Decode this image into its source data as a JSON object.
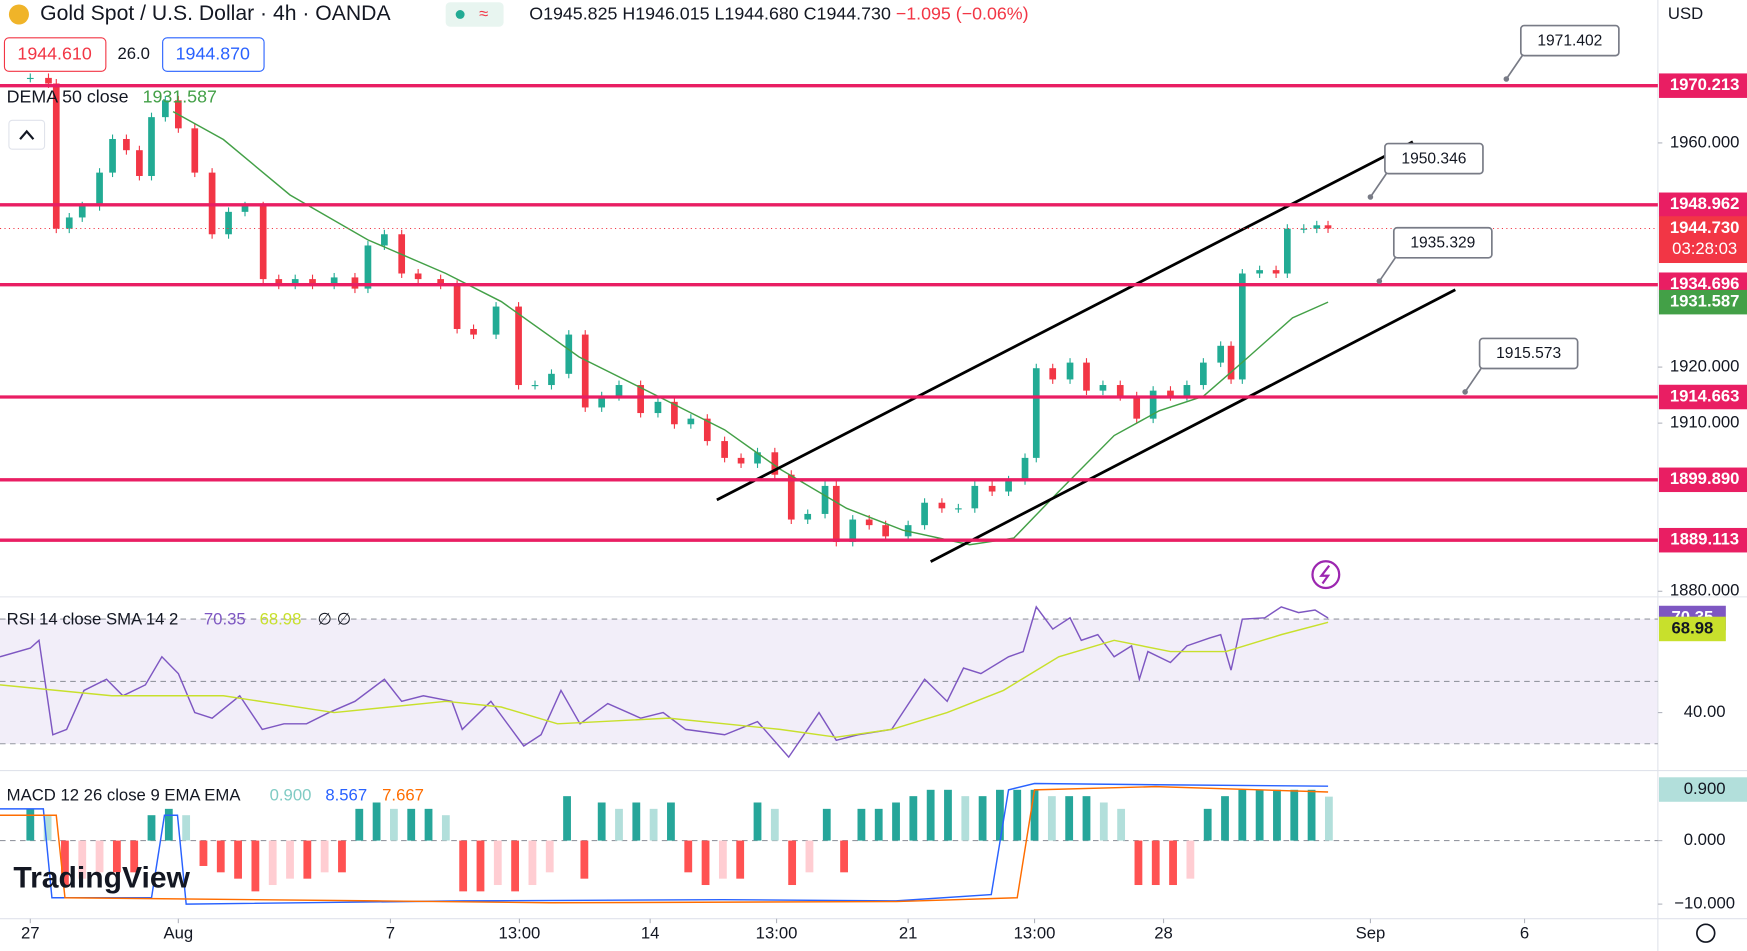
{
  "header": {
    "symbol": "Gold Spot / U.S. Dollar · 4h · OANDA",
    "open": "O1945.825",
    "high": "H1946.015",
    "low": "L1944.680",
    "close": "C1944.730",
    "change": "−1.095 (−0.06%)",
    "currency": "USD"
  },
  "quote": {
    "bid": "1944.610",
    "spread": "26.0",
    "ask": "1944.870"
  },
  "watermark": "TradingView",
  "chart_data": [
    {
      "type": "candlestick",
      "xlim": [
        -3.5,
        188
      ],
      "xticks": [
        {
          "value": 0,
          "label": "27"
        },
        {
          "value": 17.1,
          "label": "Aug"
        },
        {
          "value": 41.6,
          "label": "7"
        },
        {
          "value": 56.5,
          "label": "13:00"
        },
        {
          "value": 71.6,
          "label": "14"
        },
        {
          "value": 86.2,
          "label": "13:00"
        },
        {
          "value": 101.4,
          "label": "21"
        },
        {
          "value": 116,
          "label": "13:00"
        },
        {
          "value": 130.9,
          "label": "28"
        },
        {
          "value": 154.8,
          "label": "Sep"
        },
        {
          "value": 172.6,
          "label": "6"
        }
      ],
      "ylim": [
        1879,
        1985.5
      ],
      "yticks": [
        {
          "value": 1880,
          "label": "1880.000"
        },
        {
          "value": 1910,
          "label": "1910.000"
        },
        {
          "value": 1920,
          "label": "1920.000"
        },
        {
          "value": 1960,
          "label": "1960.000"
        }
      ],
      "up_color": "#22ab94",
      "down_color": "#f23645",
      "x": [
        0,
        2.1,
        3.0,
        4.5,
        6.0,
        8.0,
        9.5,
        11.1,
        12.6,
        14.0,
        15.6,
        17.1,
        19.0,
        21.0,
        22.9,
        24.8,
        26.9,
        28.7,
        30.6,
        32.6,
        35.1,
        37.5,
        39.0,
        40.9,
        42.9,
        44.8,
        47.4,
        49.3,
        51.2,
        53.8,
        56.4,
        58.3,
        60.2,
        62.2,
        64.1,
        66.0,
        68.0,
        70.5,
        72.5,
        74.4,
        76.3,
        78.2,
        80.2,
        82.1,
        84.0,
        86.0,
        87.9,
        89.8,
        91.8,
        93.1,
        95.0,
        96.9,
        98.8,
        101.4,
        103.3,
        105.3,
        107.2,
        109.1,
        111.1,
        113.0,
        114.9,
        116.2,
        118.1,
        120.1,
        122.0,
        123.9,
        125.9,
        127.8,
        129.7,
        131.7,
        133.6,
        135.5,
        137.5,
        138.7,
        140.0,
        142.0,
        143.9,
        145.2,
        147.1,
        148.6,
        149.9
      ],
      "close": [
        1971.6,
        1970.6,
        1944.7,
        1946.7,
        1948.7,
        1954.7,
        1960.7,
        1958.7,
        1954.1,
        1964.6,
        1967.6,
        1962.6,
        1954.7,
        1943.7,
        1947.7,
        1948.7,
        1935.7,
        1934.7,
        1935.7,
        1934.7,
        1936,
        1934,
        1941.7,
        1943.7,
        1936.7,
        1935.7,
        1934.7,
        1926.8,
        1925.8,
        1930.8,
        1916.8,
        1916.8,
        1918.8,
        1925.8,
        1912.8,
        1914.8,
        1916.8,
        1911.8,
        1913.8,
        1909.8,
        1910.8,
        1906.8,
        1903.8,
        1902.8,
        1904.8,
        1900.8,
        1892.8,
        1893.8,
        1898.8,
        1888.8,
        1892.8,
        1891.8,
        1889.8,
        1891.8,
        1895.8,
        1894.8,
        1894.8,
        1898.8,
        1897.8,
        1899.8,
        1903.8,
        1919.8,
        1917.8,
        1920.8,
        1915.8,
        1916.8,
        1914.8,
        1910.8,
        1915.8,
        1914.8,
        1916.8,
        1920.8,
        1923.8,
        1917.8,
        1936.7,
        1937.3,
        1936.7,
        1944.7,
        1944.7,
        1945.3,
        1944.73
      ],
      "last_label": "1944.730",
      "countdown": "03:28:03",
      "dema": {
        "name": "DEMA 50 close",
        "color": "#43a047",
        "x": [
          16.5,
          22.3,
          30.0,
          39.0,
          48.0,
          54.4,
          63.4,
          72.5,
          80.2,
          86.6,
          94.3,
          100.8,
          108.5,
          113.6,
          118.8,
          125.2,
          130.4,
          135.5,
          140.7,
          145.8,
          149.9
        ],
        "values": [
          1965.6,
          1960.6,
          1950.7,
          1942.7,
          1936.7,
          1931.7,
          1921.8,
          1914.8,
          1908.8,
          1901.8,
          1894.8,
          1890.9,
          1888.3,
          1889.5,
          1897.8,
          1907.8,
          1912.2,
          1914.8,
          1921.8,
          1928.8,
          1931.587
        ]
      },
      "levels": [
        1970.213,
        1948.962,
        1934.696,
        1914.663,
        {
          "value": 1899.89,
          "label": "1899.890"
        },
        1889.113
      ],
      "level_color": "#e91e63",
      "notes": [
        1971.402,
        1950.346,
        1935.329,
        1915.573
      ],
      "trendlines": [
        {
          "x": [
            79.3,
            159.7
          ],
          "values": [
            1896.3,
            1960.2
          ]
        },
        {
          "x": [
            104,
            164.6
          ],
          "values": [
            1885.3,
            1933.8
          ]
        }
      ],
      "trend_color": "#000000"
    },
    {
      "type": "line",
      "title": "RSI 14 close SMA 14 2",
      "extra": "∅ ∅",
      "ylim": [
        22.1,
        75.7
      ],
      "yticks": [
        {
          "value": 40,
          "label": "40.00"
        }
      ],
      "bands": [
        70,
        50,
        30
      ],
      "series": [
        {
          "color": "#7e57c2",
          "x": [
            -3.5,
            0,
            1.0,
            2.6,
            4.2,
            6.2,
            8.8,
            10.7,
            13.3,
            15.2,
            17.1,
            19.0,
            21.0,
            24.2,
            26.8,
            29.3,
            31.9,
            34.5,
            37.5,
            40.9,
            42.9,
            45.4,
            48.7,
            49.9,
            53.2,
            57.0,
            59.0,
            61.3,
            63.5,
            66.7,
            70.5,
            73.1,
            75.7,
            80.2,
            84.0,
            87.6,
            91.1,
            93.1,
            95.6,
            99.5,
            103.3,
            105.9,
            107.8,
            109.8,
            113.0,
            114.7,
            116.2,
            118.1,
            120.1,
            121.4,
            123.3,
            125.2,
            127.2,
            128.1,
            129.1,
            131.7,
            133.6,
            136.2,
            137.5,
            138.7,
            140.0,
            142.6,
            144.5,
            146.5,
            148.4,
            149.9
          ],
          "values": [
            57.9,
            60.7,
            63.2,
            32.9,
            34.6,
            47.1,
            50.7,
            45.4,
            48.9,
            57.9,
            52.5,
            40,
            38.2,
            45.4,
            34.6,
            36.4,
            36.4,
            40,
            43.6,
            50.7,
            43.6,
            45.4,
            43.6,
            34.6,
            43.6,
            29.3,
            32.9,
            47.1,
            36.4,
            42.9,
            38.2,
            40,
            34.6,
            32.9,
            37.1,
            25.7,
            40,
            31.1,
            32.9,
            34.6,
            50.7,
            43.6,
            54.3,
            52.5,
            57.9,
            59.6,
            73.9,
            66.8,
            70.4,
            63.2,
            65,
            57.9,
            61.4,
            50.7,
            59.6,
            56.1,
            61.4,
            63.9,
            65,
            53.6,
            70,
            70.4,
            73.9,
            72.1,
            72.9,
            70.35
          ]
        },
        {
          "color": "#c8e02c",
          "x": [
            -3.5,
            9.4,
            22.3,
            35.1,
            48.0,
            54.4,
            60.9,
            73.7,
            86.6,
            93.1,
            99.5,
            105.9,
            112.4,
            118.8,
            125.2,
            131.7,
            138.1,
            144.5,
            149.9
          ],
          "values": [
            48.9,
            45.4,
            45.4,
            40,
            43.6,
            41.8,
            36.4,
            38.2,
            34.6,
            32.1,
            34.6,
            40,
            47.1,
            57.9,
            63.2,
            59.6,
            59.6,
            65,
            68.98
          ]
        }
      ]
    },
    {
      "type": "macd",
      "title": "MACD 12 26 close 9 EMA EMA",
      "ylim": [
        -12.3,
        10.5
      ],
      "yticks": [
        {
          "value": 0,
          "label": "0.000"
        },
        {
          "value": -10,
          "label": "−10.000"
        }
      ],
      "histogram": {
        "ylim": [
          -1.6,
          1.365
        ],
        "last_label": "0.900",
        "colors": [
          "#26a69a",
          "#b2dfdb",
          "#ff5252",
          "#ffcdd2"
        ],
        "values": [
          0.65,
          0.52,
          -0.91,
          -0.78,
          -0.65,
          -0.65,
          -0.65,
          0.52,
          0.65,
          0.52,
          -0.52,
          -0.65,
          -0.78,
          -1.04,
          -0.91,
          -0.78,
          -0.78,
          -0.65,
          -0.65,
          0.65,
          0.78,
          0.65,
          0.65,
          0.65,
          0.52,
          -1.04,
          -1.04,
          -0.91,
          -1.04,
          -0.91,
          -0.65,
          0.91,
          -0.78,
          0.78,
          0.65,
          0.78,
          0.65,
          0.78,
          -0.65,
          -0.91,
          -0.78,
          -0.78,
          0.78,
          0.65,
          -0.91,
          -0.65,
          0.65,
          -0.65,
          0.65,
          0.65,
          0.78,
          0.91,
          1.04,
          1.04,
          0.91,
          0.91,
          1.04,
          1.04,
          1.04,
          0.91,
          0.91,
          0.91,
          0.78,
          0.65,
          -0.91,
          -0.91,
          -0.91,
          -0.78,
          0.65,
          0.91,
          1.04,
          1.04,
          1.04,
          1.04,
          1.04,
          0.9
        ]
      },
      "series": [
        {
          "color": "#2962ff",
          "x": [
            -3.5,
            1.5,
            2.5,
            14,
            15.5,
            17,
            18,
            50,
            80,
            100,
            111,
            113,
            116,
            130,
            149.9
          ],
          "values": [
            5,
            5,
            -9,
            -9,
            4,
            4,
            -10,
            -9.5,
            -9.3,
            -9.5,
            -8.5,
            8,
            9,
            8.8,
            8.567
          ]
        },
        {
          "color": "#ff6d00",
          "x": [
            -3.5,
            3,
            4,
            40,
            60,
            100,
            114,
            116,
            130,
            149.9
          ],
          "values": [
            4,
            4,
            -9,
            -9.5,
            -9.8,
            -9.6,
            -9,
            8,
            8.5,
            7.667
          ]
        }
      ]
    }
  ]
}
